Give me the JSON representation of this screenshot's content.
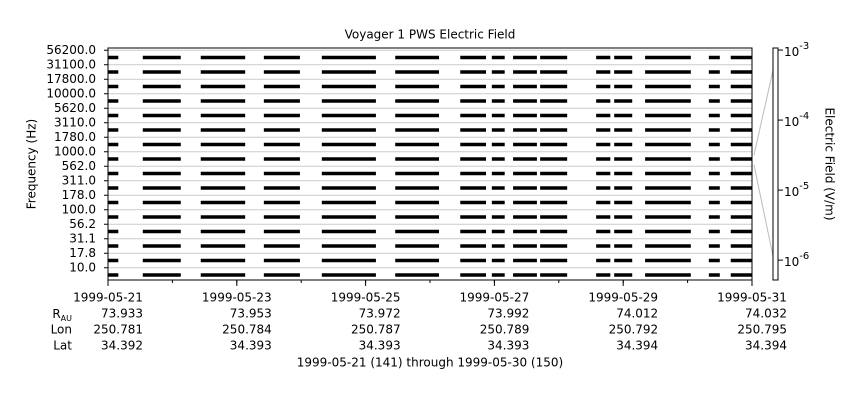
{
  "chart_data": {
    "type": "spectrogram",
    "title": "Voyager 1 PWS Electric Field",
    "y_label": "Frequency (Hz)",
    "z_label": "Electric Field (V/m)",
    "channels": [
      "10.0",
      "17.8",
      "31.1",
      "56.2",
      "100.0",
      "178.0",
      "311.0",
      "562.0",
      "1000.0",
      "1780.0",
      "3110.0",
      "5620.0",
      "10000.0",
      "17800.0",
      "31100.0",
      "56200.0"
    ],
    "xlim": [
      141,
      151
    ],
    "xticks": [
      {
        "value": 141,
        "label": "1999-05-21"
      },
      {
        "value": 143,
        "label": "1999-05-23"
      },
      {
        "value": 145,
        "label": "1999-05-25"
      },
      {
        "value": 147,
        "label": "1999-05-27"
      },
      {
        "value": 149,
        "label": "1999-05-29"
      },
      {
        "value": 151,
        "label": "1999-05-31"
      }
    ],
    "segments": [
      [
        141.0,
        141.16
      ],
      [
        141.54,
        142.13
      ],
      [
        142.44,
        143.13
      ],
      [
        143.42,
        143.98
      ],
      [
        144.32,
        145.16
      ],
      [
        145.46,
        146.14
      ],
      [
        146.47,
        146.87
      ],
      [
        146.96,
        147.16
      ],
      [
        147.29,
        147.66
      ],
      [
        147.71,
        148.13
      ],
      [
        148.58,
        148.8
      ],
      [
        148.86,
        149.14
      ],
      [
        149.34,
        150.05
      ],
      [
        150.33,
        150.5
      ],
      [
        150.67,
        151.0
      ]
    ],
    "zlim": [
      5.2e-07,
      0.00107
    ],
    "zticks": [
      {
        "value": 0.001,
        "label": "10",
        "exponent": "-3"
      },
      {
        "value": 0.0001,
        "label": "10",
        "exponent": "-4"
      },
      {
        "value": 1e-05,
        "label": "10",
        "exponent": "-5"
      },
      {
        "value": 1e-06,
        "label": "10",
        "exponent": "-6"
      }
    ],
    "log_scale_z": true,
    "color": "#000000",
    "ephemeris": [
      {
        "label": "R",
        "sub": "AU",
        "values": [
          73.933,
          73.953,
          73.972,
          73.992,
          74.012,
          74.032
        ]
      },
      {
        "label": "Lon",
        "values": [
          250.781,
          250.784,
          250.787,
          250.789,
          250.792,
          250.795
        ]
      },
      {
        "label": "Lat",
        "values": [
          34.392,
          34.393,
          34.393,
          34.393,
          34.394,
          34.394
        ]
      }
    ],
    "footer": "1999-05-21 (141) through 1999-05-30 (150)"
  }
}
